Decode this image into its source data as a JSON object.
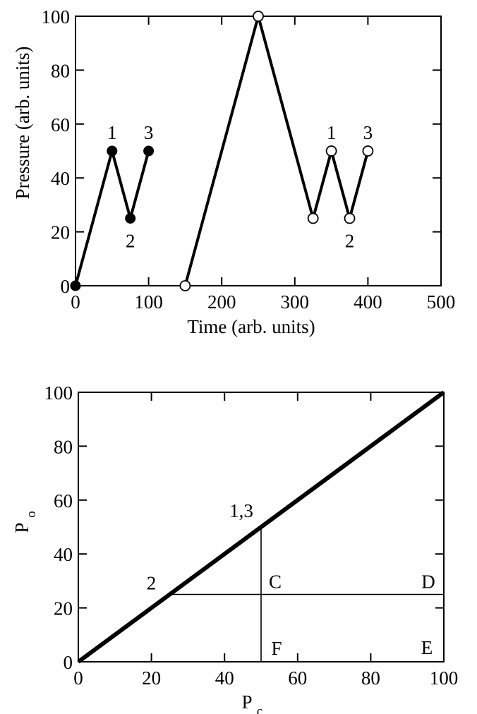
{
  "chart_data": [
    {
      "type": "line",
      "title": "",
      "xlabel": "Time (arb. units)",
      "ylabel": "Pressure (arb. units)",
      "xlim": [
        0,
        500
      ],
      "ylim": [
        0,
        100
      ],
      "xticks": [
        0,
        100,
        200,
        300,
        400,
        500
      ],
      "yticks": [
        0,
        20,
        40,
        60,
        80,
        100
      ],
      "grid": false,
      "series": [
        {
          "marker": "filled-circle",
          "x": [
            0,
            50,
            75,
            100
          ],
          "y": [
            0,
            50,
            25,
            50
          ]
        },
        {
          "marker": "open-circle",
          "x": [
            150,
            250,
            325,
            350,
            375,
            400
          ],
          "y": [
            0,
            100,
            25,
            50,
            25,
            50
          ]
        }
      ],
      "annotations": [
        {
          "text": "1",
          "x": 50,
          "y": 50
        },
        {
          "text": "2",
          "x": 75,
          "y": 25
        },
        {
          "text": "3",
          "x": 100,
          "y": 50
        },
        {
          "text": "1",
          "x": 350,
          "y": 50
        },
        {
          "text": "2",
          "x": 375,
          "y": 25
        },
        {
          "text": "3",
          "x": 400,
          "y": 50
        }
      ]
    },
    {
      "type": "line",
      "title": "",
      "xlabel": "P",
      "xlabel_sub": "c",
      "ylabel": "P",
      "ylabel_sub": "o",
      "xlim": [
        0,
        100
      ],
      "ylim": [
        0,
        100
      ],
      "xticks": [
        0,
        20,
        40,
        60,
        80,
        100
      ],
      "yticks": [
        0,
        20,
        40,
        60,
        80,
        100
      ],
      "grid": false,
      "series": [
        {
          "x": [
            0,
            100
          ],
          "y": [
            0,
            100
          ]
        }
      ],
      "reference_lines": [
        {
          "from": [
            25,
            25
          ],
          "to": [
            100,
            25
          ]
        },
        {
          "from": [
            50,
            50
          ],
          "to": [
            50,
            0
          ]
        }
      ],
      "annotations": [
        {
          "text": "1,3",
          "x": 50,
          "y": 50
        },
        {
          "text": "2",
          "x": 25,
          "y": 25
        },
        {
          "text": "C",
          "x": 50,
          "y": 25
        },
        {
          "text": "D",
          "x": 100,
          "y": 25
        },
        {
          "text": "F",
          "x": 50,
          "y": 0
        },
        {
          "text": "E",
          "x": 100,
          "y": 0
        }
      ]
    }
  ]
}
